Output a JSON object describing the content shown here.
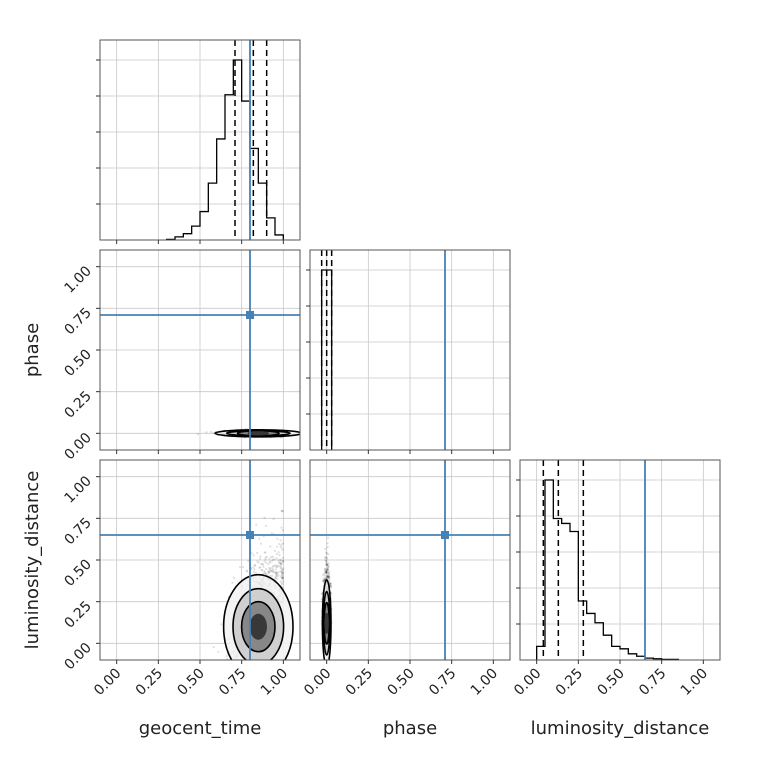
{
  "chart_data": {
    "type": "corner",
    "parameters": [
      "geocent_time",
      "phase",
      "luminosity_distance"
    ],
    "axis_range": [
      -0.1,
      1.1
    ],
    "ticks": [
      0.0,
      0.25,
      0.5,
      0.75,
      1.0
    ],
    "tick_labels": [
      "0.00",
      "0.25",
      "0.50",
      "0.75",
      "1.00"
    ],
    "truth_values": {
      "geocent_time": 0.8,
      "phase": 0.71,
      "luminosity_distance": 0.65
    },
    "truth_color": "#4682b4",
    "grid": true,
    "histograms": {
      "geocent_time": {
        "bin_edges": [
          0.3,
          0.35,
          0.4,
          0.45,
          0.5,
          0.55,
          0.6,
          0.65,
          0.7,
          0.75,
          0.8,
          0.85,
          0.9,
          0.95,
          1.0
        ],
        "counts": [
          1,
          5,
          10,
          22,
          45,
          90,
          160,
          230,
          285,
          220,
          145,
          90,
          35,
          8
        ],
        "quantiles": [
          0.71,
          0.82,
          0.9
        ]
      },
      "phase": {
        "bin_edges": [
          -0.03,
          0.0,
          0.03
        ],
        "counts": [
          100,
          100
        ],
        "quantiles": [
          -0.03,
          0.0,
          0.03
        ]
      },
      "luminosity_distance": {
        "bin_edges": [
          0.0,
          0.05,
          0.1,
          0.15,
          0.2,
          0.25,
          0.3,
          0.35,
          0.4,
          0.45,
          0.5,
          0.55,
          0.6,
          0.65,
          0.7,
          0.75,
          0.8,
          0.85
        ],
        "counts": [
          22,
          290,
          228,
          220,
          207,
          95,
          75,
          60,
          40,
          22,
          18,
          10,
          6,
          3,
          2,
          1,
          1
        ],
        "quantiles": [
          0.04,
          0.13,
          0.28
        ]
      }
    },
    "joint_2d": [
      {
        "x": "geocent_time",
        "y": "phase",
        "center": [
          0.85,
          0.0
        ],
        "spread": [
          0.1,
          0.008
        ]
      },
      {
        "x": "geocent_time",
        "y": "luminosity_distance",
        "center": [
          0.85,
          0.1
        ],
        "spread": [
          0.08,
          0.12
        ]
      },
      {
        "x": "phase",
        "y": "luminosity_distance",
        "center": [
          0.0,
          0.12
        ],
        "spread": [
          0.01,
          0.1
        ]
      }
    ]
  }
}
